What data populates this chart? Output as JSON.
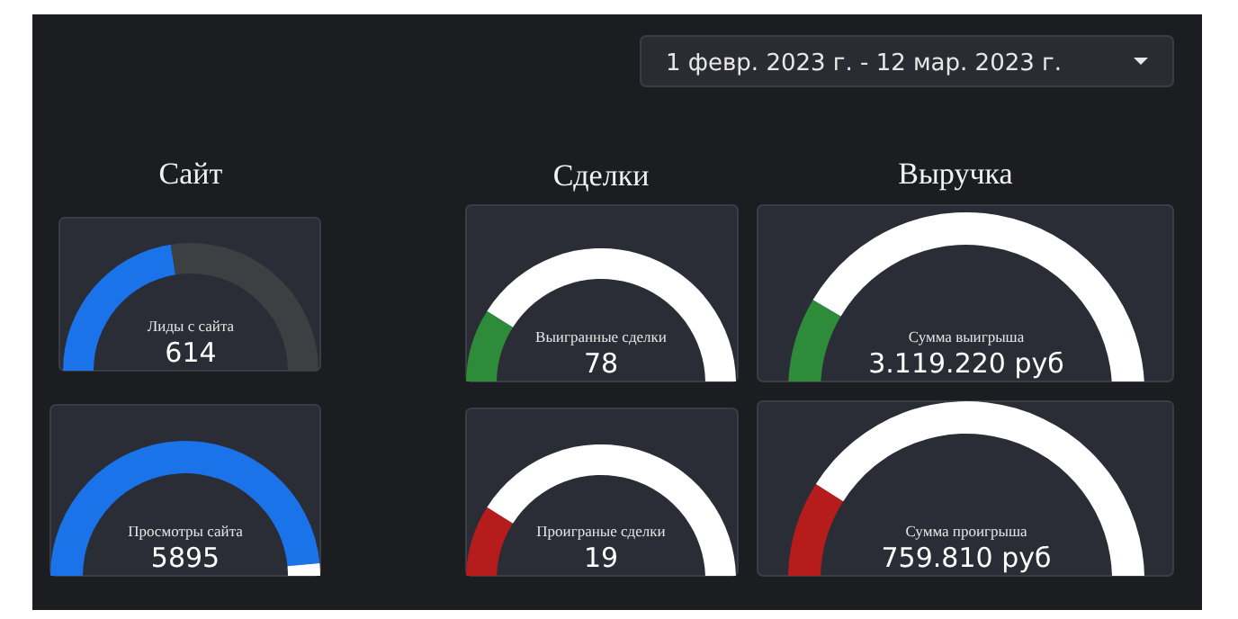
{
  "chart_data": [
    {
      "type": "other",
      "annotations": [
        "1 февр. 2023 г. - 12 мар. 2023 г.",
        "Сайт",
        "Сделки",
        "Выручка"
      ]
    },
    {
      "type": "donut",
      "title": "Лиды с сайта",
      "categories": [
        null,
        null
      ],
      "values": [
        45,
        55
      ],
      "colors": [
        "#1a73e8",
        "#3c4043"
      ],
      "annotations": [
        "614"
      ]
    },
    {
      "type": "donut",
      "title": "Просмотры сайта",
      "categories": [
        null,
        null
      ],
      "values": [
        97,
        3
      ],
      "colors": [
        "#1a73e8",
        "#ffffff"
      ],
      "annotations": [
        "5895"
      ]
    },
    {
      "type": "donut",
      "title": "Выигранные сделки",
      "categories": [
        null,
        null
      ],
      "values": [
        18,
        82
      ],
      "colors": [
        "#2e8b3a",
        "#ffffff"
      ],
      "annotations": [
        "78"
      ]
    },
    {
      "type": "donut",
      "title": "Проиграные сделки",
      "categories": [
        null,
        null
      ],
      "values": [
        18,
        82
      ],
      "colors": [
        "#b71c1c",
        "#ffffff"
      ],
      "annotations": [
        "19"
      ]
    },
    {
      "type": "donut",
      "title": "Сумма выигрыша",
      "categories": [
        null,
        null
      ],
      "values": [
        17,
        83
      ],
      "colors": [
        "#2e8b3a",
        "#ffffff"
      ],
      "annotations": [
        "3.119.220 руб"
      ]
    },
    {
      "type": "donut",
      "title": "Сумма проигрыша",
      "categories": [
        null,
        null
      ],
      "values": [
        18,
        82
      ],
      "colors": [
        "#b71c1c",
        "#ffffff"
      ],
      "annotations": [
        "759.810 руб"
      ]
    }
  ]
}
